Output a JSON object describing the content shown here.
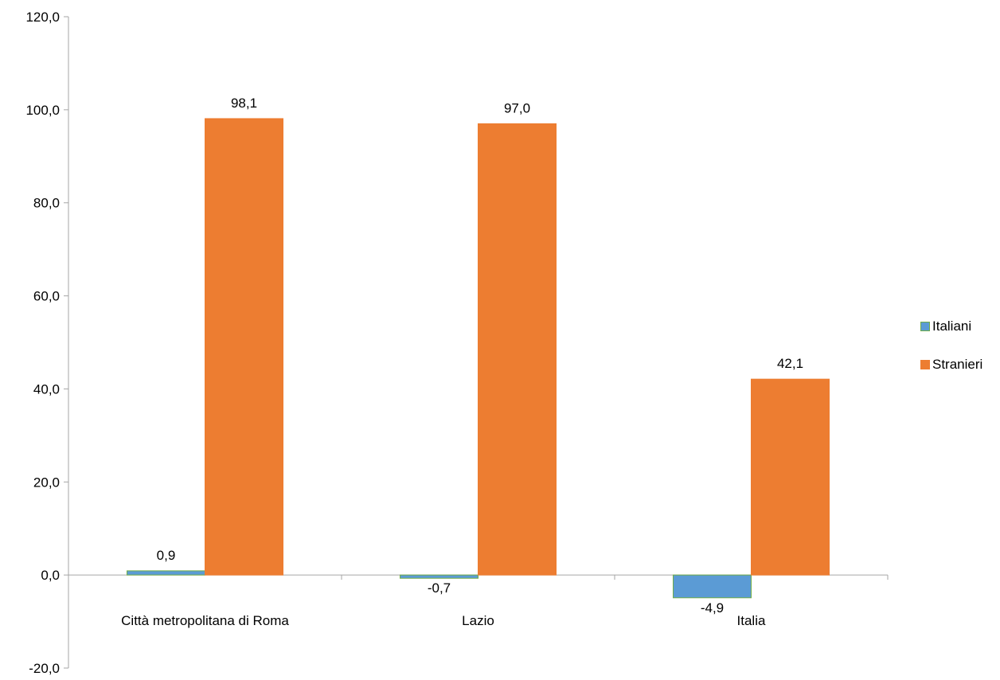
{
  "chart_data": {
    "type": "bar",
    "categories": [
      "Città metropolitana di Roma",
      "Lazio",
      "Italia"
    ],
    "series": [
      {
        "name": "Italiani",
        "values": [
          0.9,
          -0.7,
          -4.9
        ],
        "color": "#5B9BD5",
        "border": "#70AD47"
      },
      {
        "name": "Stranieri",
        "values": [
          98.1,
          97.0,
          42.1
        ],
        "color": "#ED7D31",
        "border": "#ED7D31"
      }
    ],
    "data_labels": [
      [
        "0,9",
        "-0,7",
        "-4,9"
      ],
      [
        "98,1",
        "97,0",
        "42,1"
      ]
    ],
    "ylim": [
      -20,
      120
    ],
    "yticks": [
      -20,
      0,
      20,
      40,
      60,
      80,
      100,
      120
    ],
    "ytick_labels": [
      "-20,0",
      "0,0",
      "20,0",
      "40,0",
      "60,0",
      "80,0",
      "100,0",
      "120,0"
    ],
    "grid": false,
    "legend_position": "right",
    "title": "",
    "xlabel": "",
    "ylabel": ""
  }
}
